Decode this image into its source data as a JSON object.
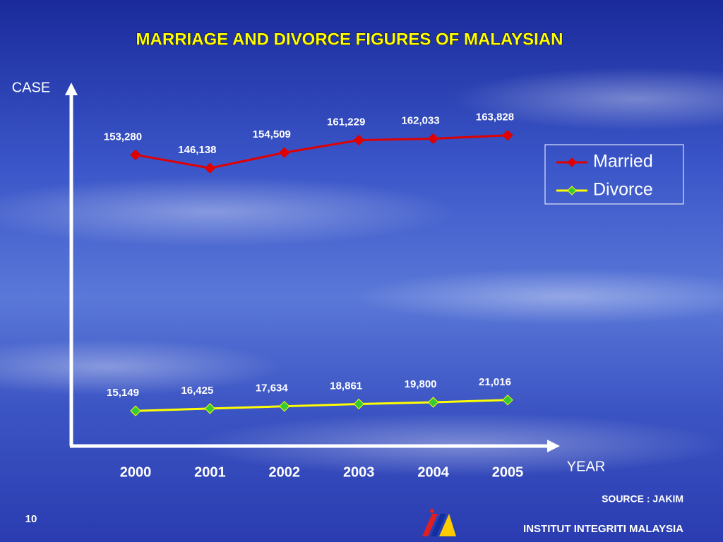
{
  "chart_data": {
    "type": "line",
    "title": "MARRIAGE AND DIVORCE FIGURES OF MALAYSIAN",
    "y_label": "CASE",
    "x_label": "YEAR",
    "categories": [
      "2000",
      "2001",
      "2002",
      "2003",
      "2004",
      "2005"
    ],
    "ylim": [
      0,
      190000
    ],
    "legend": "right",
    "series": [
      {
        "name": "Married",
        "color": "#e00000",
        "marker_color": "#e00000",
        "values": [
          153280,
          146138,
          154509,
          161229,
          162033,
          163828
        ],
        "value_labels": [
          "153,280",
          "146,138",
          "154,509",
          "161,229",
          "162,033",
          "163,828"
        ]
      },
      {
        "name": "Divorce",
        "color": "#ffff00",
        "marker_color": "#33cc33",
        "values": [
          15149,
          16425,
          17634,
          18861,
          19800,
          21016
        ],
        "value_labels": [
          "15,149",
          "16,425",
          "17,634",
          "18,861",
          "19,800",
          "21,016"
        ]
      }
    ]
  },
  "source": "SOURCE : JAKIM",
  "page_number": "10",
  "footer": "INSTITUT INTEGRITI MALAYSIA"
}
